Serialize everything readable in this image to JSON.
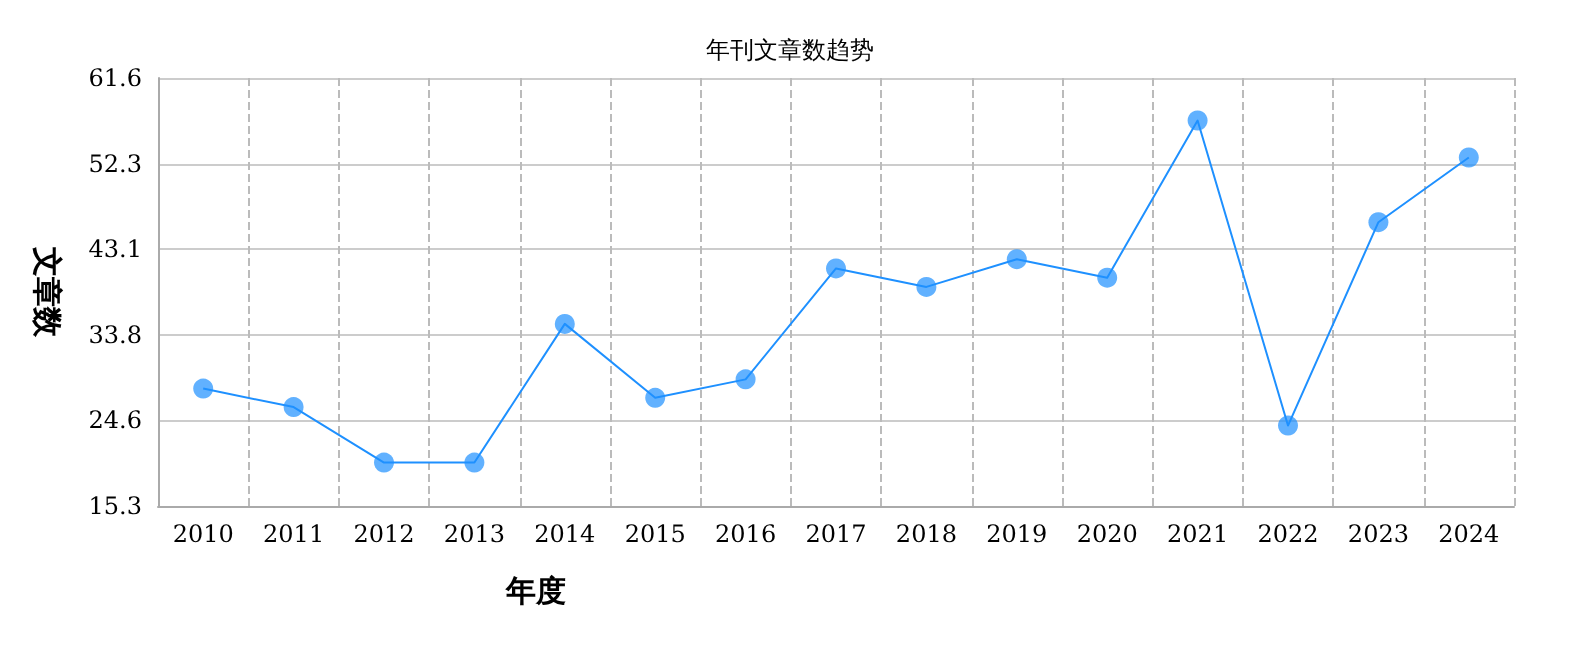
{
  "chart_data": {
    "type": "line",
    "title": "年刊文章数趋势",
    "xlabel": "年度",
    "ylabel": "文章数",
    "categories": [
      "2010",
      "2011",
      "2012",
      "2013",
      "2014",
      "2015",
      "2016",
      "2017",
      "2018",
      "2019",
      "2020",
      "2021",
      "2022",
      "2023",
      "2024"
    ],
    "series": [
      {
        "color": "#1e90ff",
        "values": [
          28,
          26,
          20,
          20,
          35,
          27,
          29,
          41,
          39,
          42,
          40,
          57,
          24,
          46,
          53
        ]
      }
    ],
    "ylim": [
      15.3,
      61.6
    ],
    "yticks": [
      15.3,
      24.6,
      33.8,
      43.1,
      52.3,
      61.6
    ],
    "grid": true,
    "marker": "circle",
    "line_style": "solid"
  }
}
